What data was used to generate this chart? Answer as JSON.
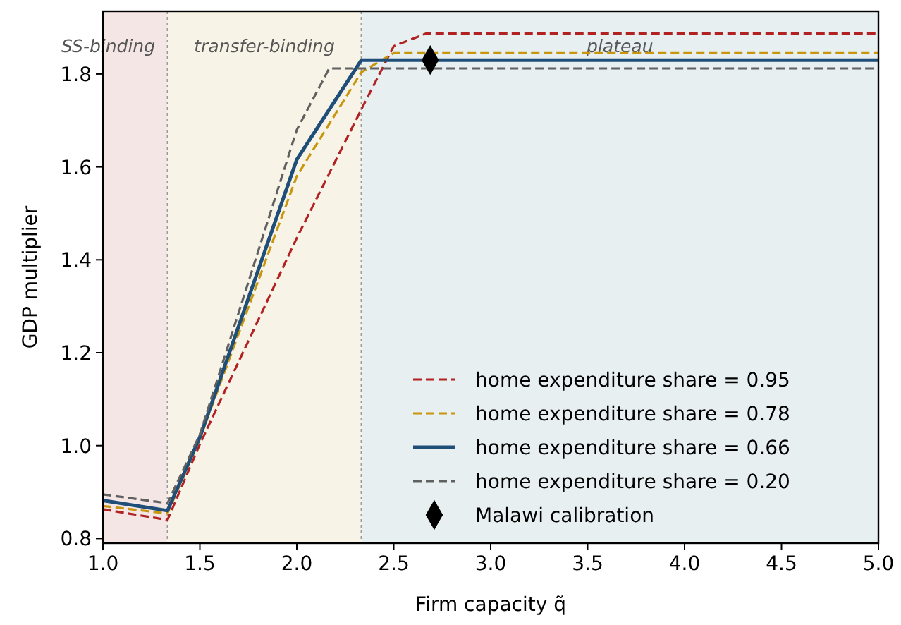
{
  "chart_data": {
    "type": "line",
    "xlabel": "Firm capacity q̃",
    "ylabel": "GDP multiplier",
    "xlim": [
      1.0,
      5.0
    ],
    "ylim": [
      0.79,
      1.935
    ],
    "xticks": [
      {
        "value": 1,
        "label": "1.0"
      },
      {
        "value": 1.5,
        "label": "1.5"
      },
      {
        "value": 2,
        "label": "2.0"
      },
      {
        "value": 2.5,
        "label": "2.5"
      },
      {
        "value": 3,
        "label": "3.0"
      },
      {
        "value": 3.5,
        "label": "3.5"
      },
      {
        "value": 4,
        "label": "4.0"
      },
      {
        "value": 4.5,
        "label": "4.5"
      },
      {
        "value": 5,
        "label": "5.0"
      }
    ],
    "yticks": [
      {
        "value": 0.8,
        "label": "0.8"
      },
      {
        "value": 1,
        "label": "1.0"
      },
      {
        "value": 1.2,
        "label": "1.2"
      },
      {
        "value": 1.4,
        "label": "1.4"
      },
      {
        "value": 1.6,
        "label": "1.6"
      },
      {
        "value": 1.8,
        "label": "1.8"
      }
    ],
    "bands": [
      {
        "axis": "x",
        "from": 1.0,
        "to": 1.333,
        "label": "SS-binding",
        "color": "#f5e6e6"
      },
      {
        "axis": "x",
        "from": 1.333,
        "to": 2.333,
        "label": "transfer-binding",
        "color": "#f7f3e6"
      },
      {
        "axis": "x",
        "from": 2.333,
        "to": 5.0,
        "label": "plateau",
        "color": "#e8eff0"
      }
    ],
    "ref_lines": [
      {
        "axis": "x",
        "value": 1.333,
        "color": "#999999",
        "line_style": "dotted"
      },
      {
        "axis": "x",
        "value": 2.333,
        "color": "#999999",
        "line_style": "dotted"
      }
    ],
    "legend": "bottom right",
    "grid": false,
    "series": [
      {
        "name": "home expenditure share = 0.95",
        "color": "#b22222",
        "line_style": "dashed",
        "marker": "none",
        "x": [
          1.0,
          1.333,
          1.5,
          2.0,
          2.333,
          2.5,
          2.667,
          5.0
        ],
        "values": [
          0.863,
          0.84,
          1.003,
          1.447,
          1.724,
          1.86,
          1.887,
          1.887
        ]
      },
      {
        "name": "home expenditure share = 0.78",
        "color": "#c8960c",
        "line_style": "dashed",
        "marker": "none",
        "x": [
          1.0,
          1.333,
          1.5,
          2.0,
          2.333,
          2.5,
          5.0
        ],
        "values": [
          0.87,
          0.854,
          1.015,
          1.58,
          1.804,
          1.845,
          1.845
        ]
      },
      {
        "name": "home expenditure share = 0.66",
        "color": "#1f4e79",
        "line_style": "solid",
        "marker": "none",
        "x": [
          1.0,
          1.333,
          1.5,
          2.0,
          2.333,
          5.0
        ],
        "values": [
          0.882,
          0.86,
          1.018,
          1.616,
          1.83,
          1.83
        ]
      },
      {
        "name": "home expenditure share = 0.20",
        "color": "#606060",
        "line_style": "dashed",
        "marker": "none",
        "x": [
          1.0,
          1.333,
          1.5,
          2.0,
          2.167,
          5.0
        ],
        "values": [
          0.895,
          0.876,
          1.024,
          1.68,
          1.812,
          1.812
        ]
      },
      {
        "name": "Malawi calibration",
        "type": "scatter",
        "color": "#000000",
        "marker": "diamond",
        "x": [
          2.688
        ],
        "values": [
          1.83
        ]
      }
    ]
  }
}
